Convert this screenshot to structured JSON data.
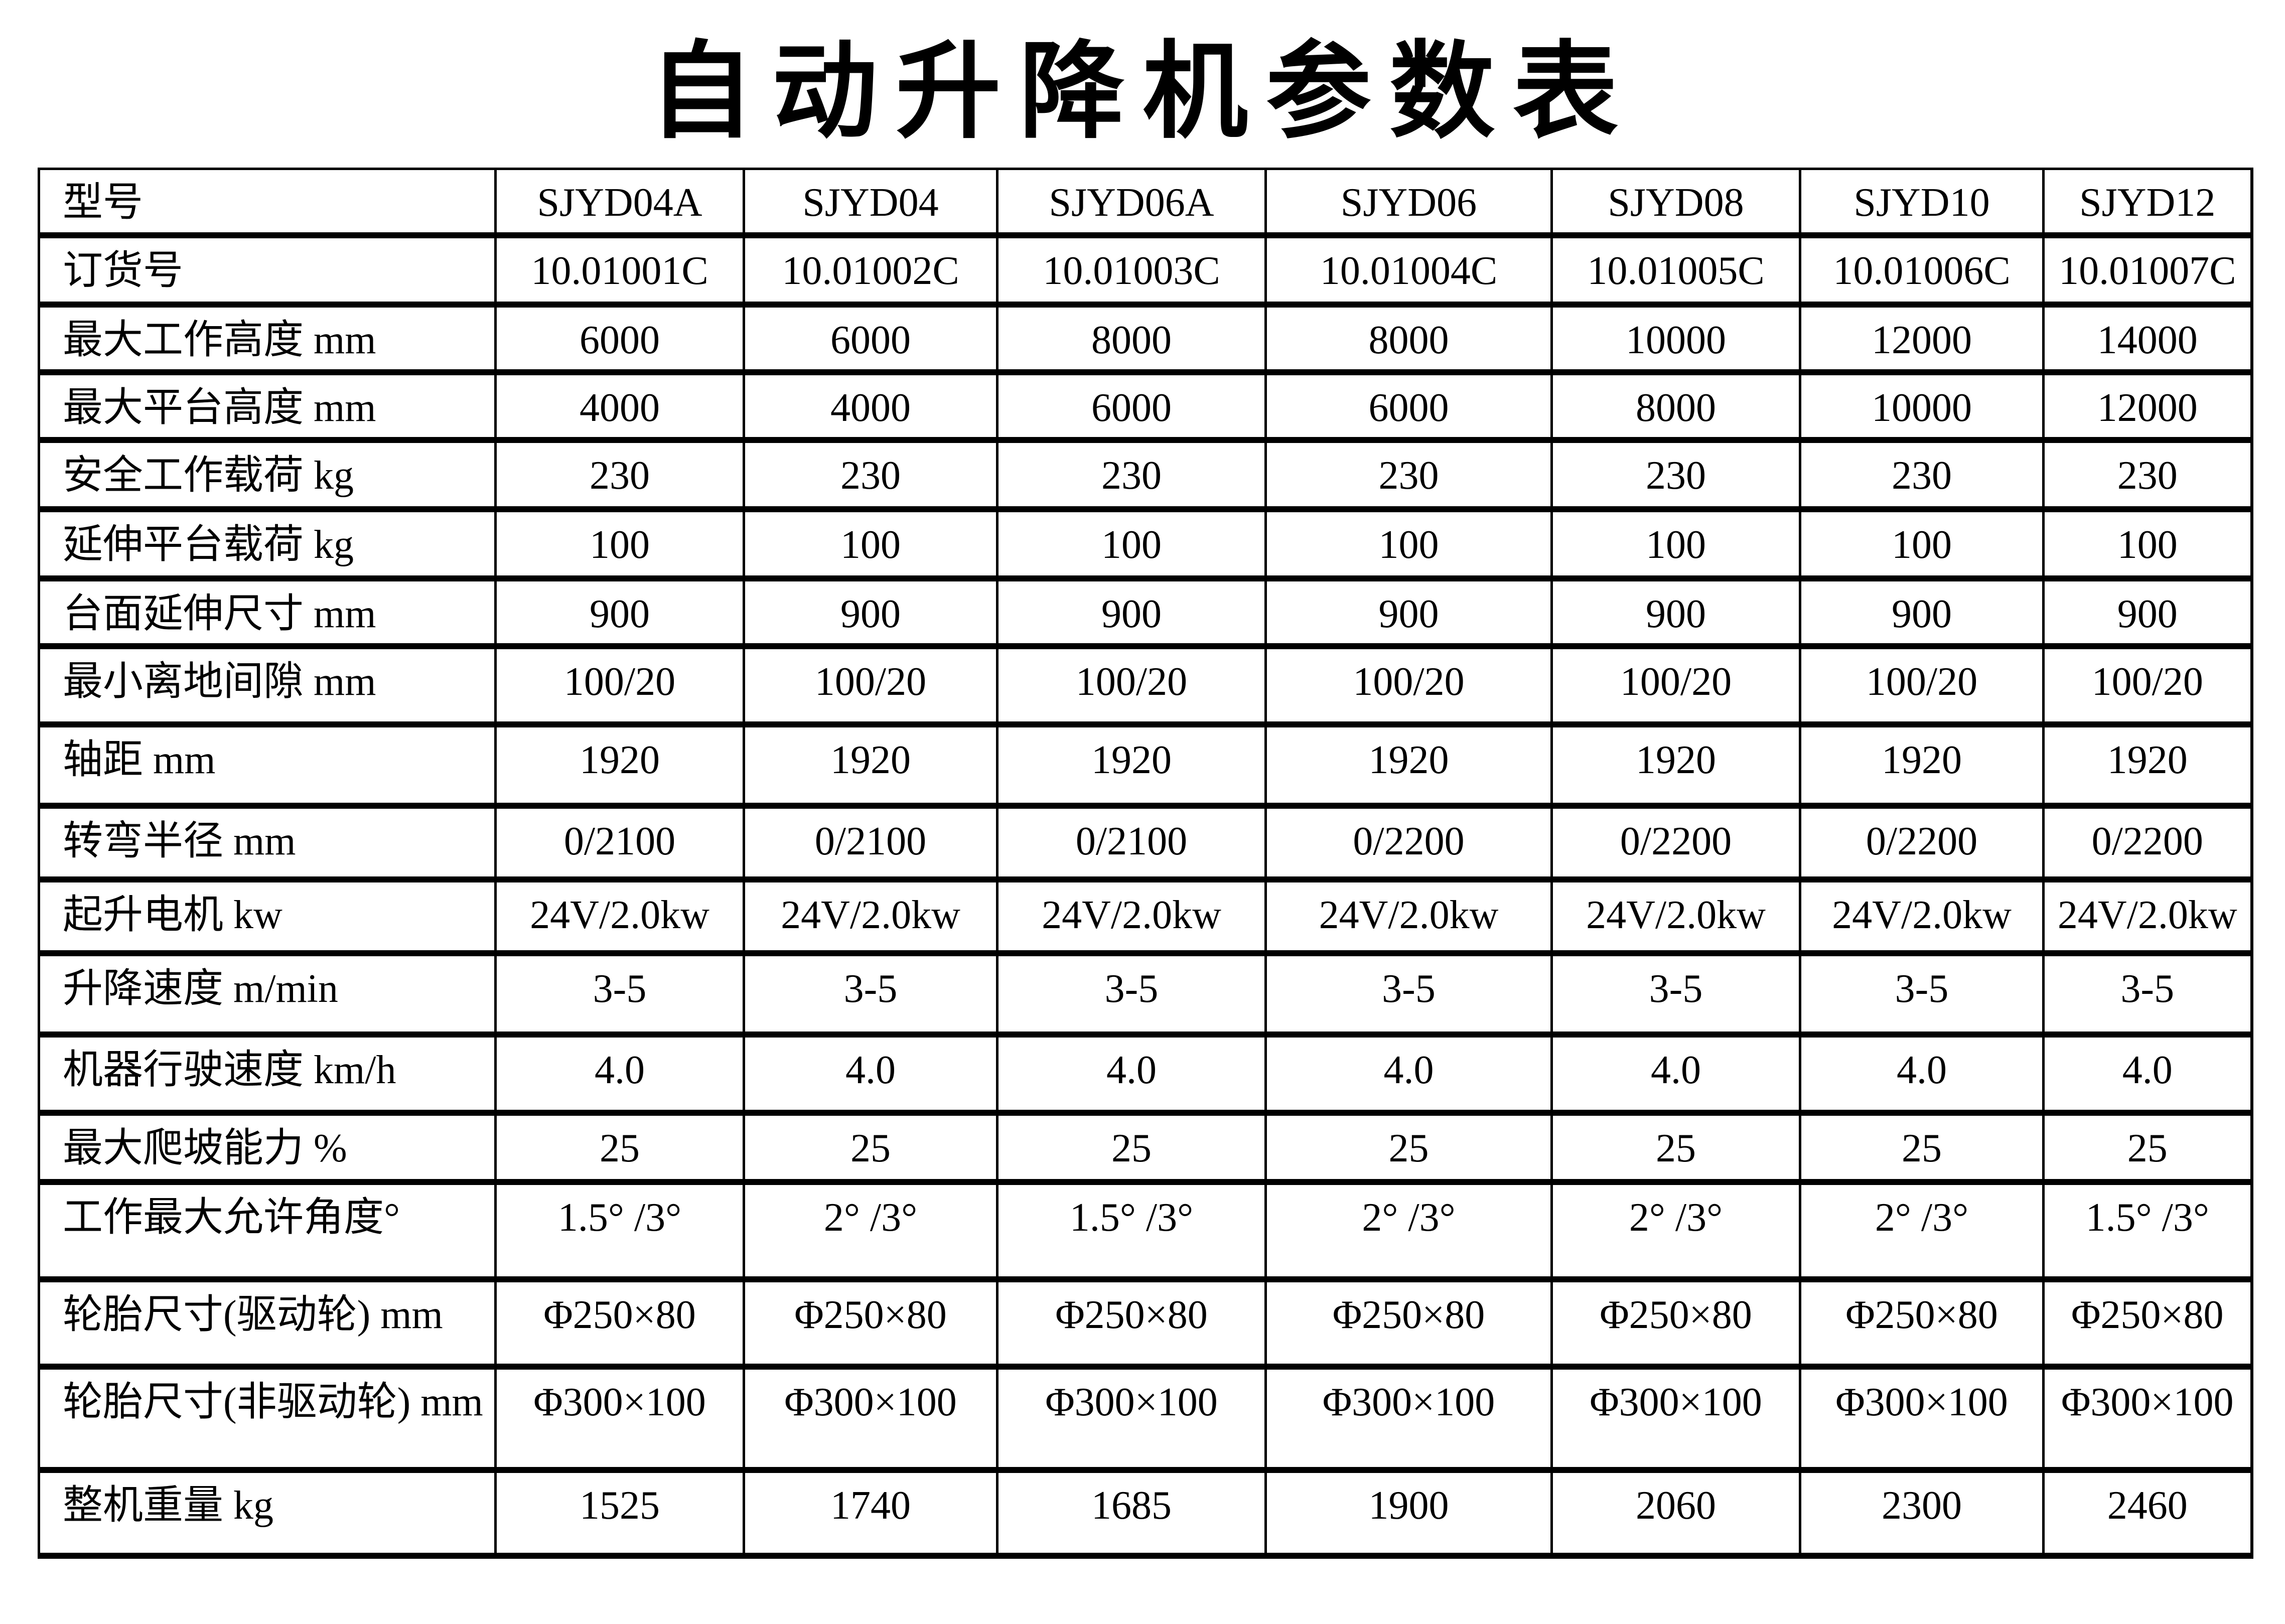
{
  "title": "自动升降机参数表",
  "table": {
    "corner_label": "型号",
    "columns": [
      "SJYD04A",
      "SJYD04",
      "SJYD06A",
      "SJYD06",
      "SJYD08",
      "SJYD10",
      "SJYD12"
    ],
    "rows": [
      {
        "label": "订货号",
        "values": [
          "10.01001C",
          "10.01002C",
          "10.01003C",
          "10.01004C",
          "10.01005C",
          "10.01006C",
          "10.01007C"
        ]
      },
      {
        "label": "最大工作高度 mm",
        "values": [
          "6000",
          "6000",
          "8000",
          "8000",
          "10000",
          "12000",
          "14000"
        ]
      },
      {
        "label": "最大平台高度 mm",
        "values": [
          "4000",
          "4000",
          "6000",
          "6000",
          "8000",
          "10000",
          "12000"
        ]
      },
      {
        "label": "安全工作载荷 kg",
        "values": [
          "230",
          "230",
          "230",
          "230",
          "230",
          "230",
          "230"
        ]
      },
      {
        "label": "延伸平台载荷 kg",
        "values": [
          "100",
          "100",
          "100",
          "100",
          "100",
          "100",
          "100"
        ]
      },
      {
        "label": "台面延伸尺寸 mm",
        "values": [
          "900",
          "900",
          "900",
          "900",
          "900",
          "900",
          "900"
        ]
      },
      {
        "label": "最小离地间隙 mm",
        "values": [
          "100/20",
          "100/20",
          "100/20",
          "100/20",
          "100/20",
          "100/20",
          "100/20"
        ]
      },
      {
        "label": "轴距 mm",
        "values": [
          "1920",
          "1920",
          "1920",
          "1920",
          "1920",
          "1920",
          "1920"
        ]
      },
      {
        "label": "转弯半径 mm",
        "values": [
          "0/2100",
          "0/2100",
          "0/2100",
          "0/2200",
          "0/2200",
          "0/2200",
          "0/2200"
        ]
      },
      {
        "label": "起升电机 kw",
        "values": [
          "24V/2.0kw",
          "24V/2.0kw",
          "24V/2.0kw",
          "24V/2.0kw",
          "24V/2.0kw",
          "24V/2.0kw",
          "24V/2.0kw"
        ]
      },
      {
        "label": "升降速度  m/min",
        "values": [
          "3-5",
          "3-5",
          "3-5",
          "3-5",
          "3-5",
          "3-5",
          "3-5"
        ]
      },
      {
        "label": "机器行驶速度 km/h",
        "values": [
          "4.0",
          "4.0",
          "4.0",
          "4.0",
          "4.0",
          "4.0",
          "4.0"
        ]
      },
      {
        "label": "最大爬坡能力  %",
        "values": [
          "25",
          "25",
          "25",
          "25",
          "25",
          "25",
          "25"
        ]
      },
      {
        "label": "工作最大允许角度°",
        "values": [
          "1.5° /3°",
          "2° /3°",
          "1.5° /3°",
          "2° /3°",
          "2° /3°",
          "2° /3°",
          "1.5° /3°"
        ]
      },
      {
        "label": "轮胎尺寸(驱动轮) mm",
        "values": [
          "Φ250×80",
          "Φ250×80",
          "Φ250×80",
          "Φ250×80",
          "Φ250×80",
          "Φ250×80",
          "Φ250×80"
        ]
      },
      {
        "label": "轮胎尺寸(非驱动轮)  mm",
        "values": [
          "Φ300×100",
          "Φ300×100",
          "Φ300×100",
          "Φ300×100",
          "Φ300×100",
          "Φ300×100",
          "Φ300×100"
        ]
      },
      {
        "label": "整机重量  kg",
        "values": [
          "1525",
          "1740",
          "1685",
          "1900",
          "2060",
          "2300",
          "2460"
        ]
      }
    ]
  }
}
